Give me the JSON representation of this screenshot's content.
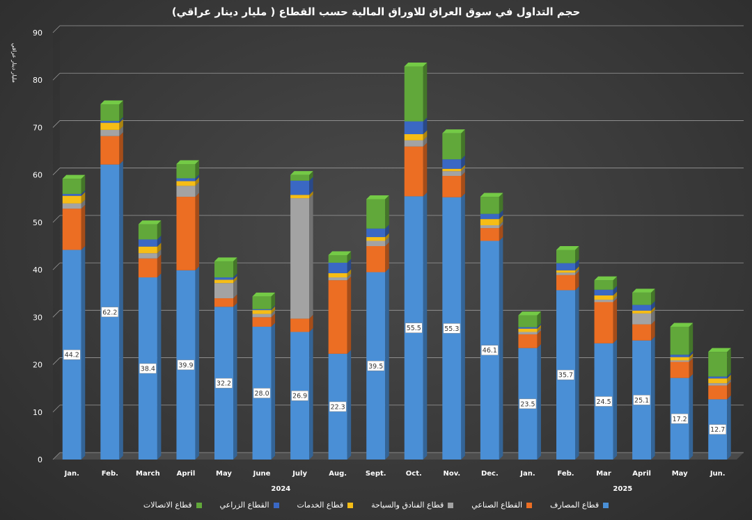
{
  "chart_data": {
    "type": "bar",
    "stacked": true,
    "title": "حجم التداول في سوق العراق للاوراق المالية حسب القطاع ( مليار دينار عراقي)",
    "ylabel": "مليار دينار عراقي",
    "ylim": [
      0,
      90
    ],
    "yticks": [
      "0",
      "10",
      "20",
      "30",
      "40",
      "50",
      "60",
      "70",
      "80",
      "90"
    ],
    "grid": true,
    "legend_position": "bottom",
    "categories": [
      "Jan.",
      "Feb.",
      "March",
      "April",
      "May",
      "June",
      "July",
      "Aug.",
      "Sept.",
      "Oct.",
      "Nov.",
      "Dec.",
      "Jan.",
      "Feb.",
      "Mar",
      "April",
      "May",
      "Jun."
    ],
    "year_labels": [
      {
        "label": "2024",
        "from_index": 0,
        "to_index": 11
      },
      {
        "label": "2025",
        "from_index": 12,
        "to_index": 17
      }
    ],
    "series": [
      {
        "name": "قطاع المصارف",
        "color": "#4a8fd6",
        "labels": [
          "44.2",
          "62.2",
          "38.4",
          "39.9",
          "32.2",
          "28.0",
          "26.9",
          "22.3",
          "39.5",
          "55.5",
          "55.3",
          "46.1",
          "23.5",
          "35.7",
          "24.5",
          "25.1",
          "17.2",
          "12.7"
        ],
        "values": [
          44.2,
          62.2,
          38.4,
          39.9,
          32.2,
          28.0,
          26.9,
          22.3,
          39.5,
          55.5,
          55.3,
          46.1,
          23.5,
          35.7,
          24.5,
          25.1,
          17.2,
          12.7
        ]
      },
      {
        "name": "القطاع الصناعي",
        "color": "#ec6e23",
        "values": [
          8.7,
          6.0,
          4.0,
          15.5,
          1.8,
          2.0,
          2.8,
          15.5,
          5.5,
          10.5,
          4.5,
          2.7,
          2.9,
          3.2,
          8.7,
          3.4,
          3.4,
          2.9
        ]
      },
      {
        "name": "قطاع الفنادق والسياحة",
        "color": "#a3a3a3",
        "values": [
          1.1,
          1.3,
          1.1,
          2.3,
          3.2,
          0.7,
          25.4,
          0.6,
          1.1,
          1.3,
          1.0,
          0.6,
          0.5,
          0.5,
          0.5,
          2.3,
          0.3,
          0.5
        ]
      },
      {
        "name": "قطاع الخدمات",
        "color": "#f6bd16",
        "values": [
          1.6,
          1.5,
          1.4,
          1.0,
          0.7,
          0.8,
          0.7,
          0.9,
          0.8,
          1.3,
          0.5,
          1.3,
          0.7,
          0.5,
          0.9,
          0.6,
          0.7,
          1.0
        ]
      },
      {
        "name": "القطاع الزراعي",
        "color": "#3a68c4",
        "values": [
          0.4,
          0.4,
          1.5,
          0.6,
          0.5,
          0.2,
          3.0,
          2.2,
          1.8,
          2.7,
          2.0,
          1.1,
          0.3,
          1.5,
          1.2,
          1.2,
          0.5,
          0.4
        ]
      },
      {
        "name": "قطاع الاتصالات",
        "color": "#61a83a",
        "values": [
          3.2,
          3.5,
          3.2,
          3.0,
          3.4,
          2.7,
          1.2,
          1.6,
          6.2,
          11.6,
          5.5,
          3.6,
          2.5,
          2.8,
          2.0,
          2.6,
          5.9,
          5.2
        ]
      }
    ]
  }
}
